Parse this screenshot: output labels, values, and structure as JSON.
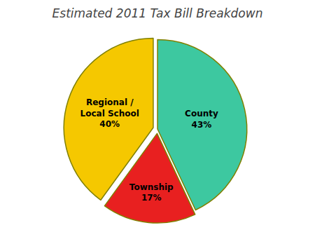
{
  "chart_data": {
    "type": "pie",
    "title": "Estimated 2011 Tax Bill Breakdown",
    "categories": [
      "County",
      "Township",
      "Regional /\nLocal School"
    ],
    "values": [
      43,
      17,
      40
    ],
    "value_labels": [
      "43%",
      "17%",
      "40%"
    ],
    "data_labels": true,
    "colors": [
      "#3DC8A0",
      "#E82020",
      "#F5C800"
    ]
  }
}
